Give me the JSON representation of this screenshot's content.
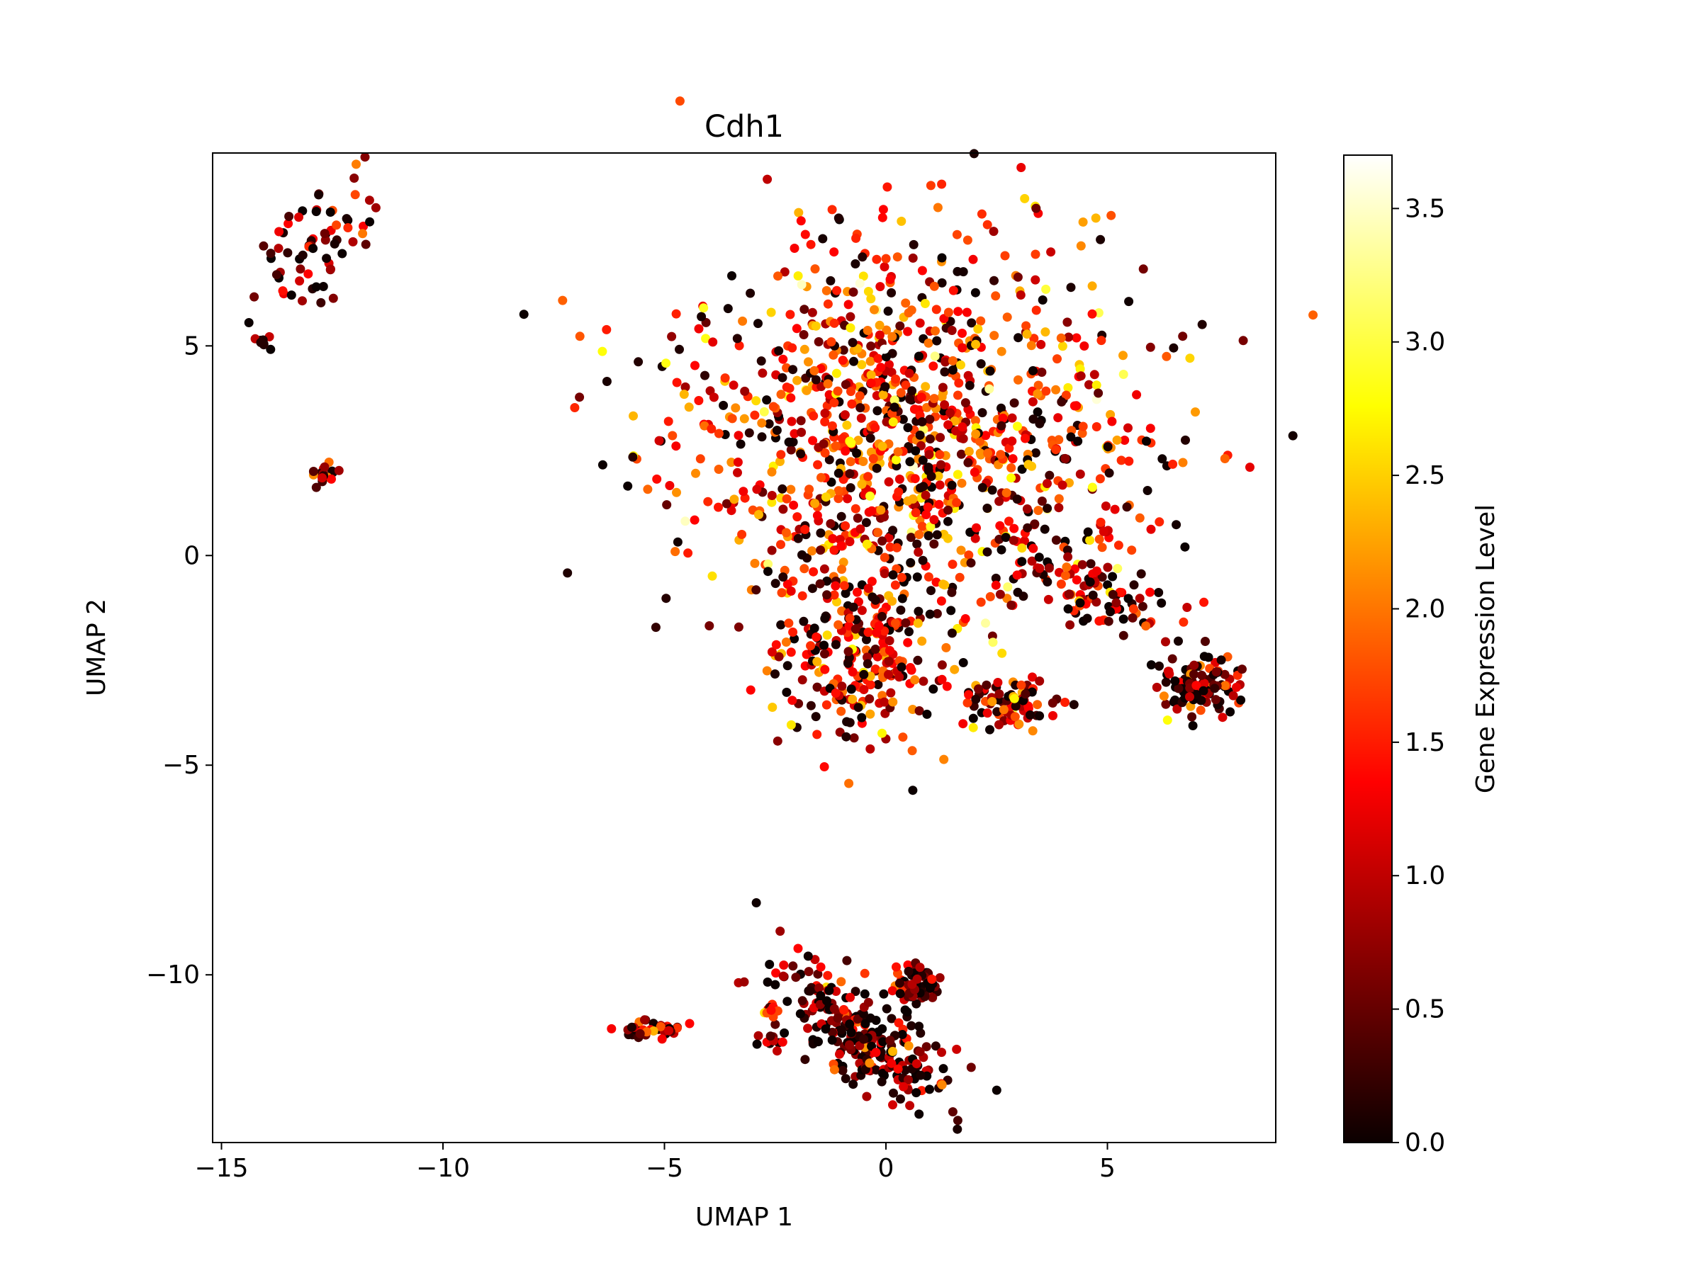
{
  "chart_data": {
    "type": "scatter",
    "title": "Cdh1",
    "xlabel": "UMAP 1",
    "ylabel": "UMAP 2",
    "xlim": [
      -15.2,
      8.8
    ],
    "ylim": [
      -14.0,
      9.6
    ],
    "xticks": [
      -15,
      -10,
      -5,
      0,
      5
    ],
    "xtick_labels": [
      "−15",
      "−10",
      "−5",
      "0",
      "5"
    ],
    "yticks": [
      -10,
      -5,
      0,
      5
    ],
    "ytick_labels": [
      "−10",
      "−5",
      "0",
      "5"
    ],
    "grid": false,
    "colormap": "hot",
    "colorbar": {
      "label": "Gene Expression Level",
      "min": 0.0,
      "max": 3.7,
      "ticks": [
        0.0,
        0.5,
        1.0,
        1.5,
        2.0,
        2.5,
        3.0,
        3.5
      ],
      "tick_labels": [
        "0.0",
        "0.5",
        "1.0",
        "1.5",
        "2.0",
        "2.5",
        "3.0",
        "3.5"
      ]
    },
    "clusters": [
      {
        "x": -12.9,
        "y": 7.4,
        "spread_x": 0.5,
        "spread_y": 0.9,
        "angle": -35,
        "count": 70,
        "mean_expression": 0.6
      },
      {
        "x": -14.1,
        "y": 5.1,
        "spread_x": 0.12,
        "spread_y": 0.08,
        "angle": 0,
        "count": 8,
        "mean_expression": 0.4
      },
      {
        "x": -12.7,
        "y": 1.95,
        "spread_x": 0.18,
        "spread_y": 0.15,
        "angle": 0,
        "count": 18,
        "mean_expression": 1.0
      },
      {
        "x": 0.5,
        "y": 3.0,
        "spread_x": 2.6,
        "spread_y": 2.2,
        "angle": 0,
        "count": 1100,
        "mean_expression": 1.5
      },
      {
        "x": -0.5,
        "y": -2.2,
        "spread_x": 1.0,
        "spread_y": 1.1,
        "angle": 0,
        "count": 260,
        "mean_expression": 1.3
      },
      {
        "x": 2.8,
        "y": -3.5,
        "spread_x": 0.6,
        "spread_y": 0.3,
        "angle": 0,
        "count": 80,
        "mean_expression": 1.0
      },
      {
        "x": 4.8,
        "y": -0.8,
        "spread_x": 1.2,
        "spread_y": 0.5,
        "angle": -25,
        "count": 110,
        "mean_expression": 1.1
      },
      {
        "x": 7.1,
        "y": -3.1,
        "spread_x": 0.5,
        "spread_y": 0.35,
        "angle": 0,
        "count": 110,
        "mean_expression": 0.4
      },
      {
        "x": -0.6,
        "y": -11.4,
        "spread_x": 1.3,
        "spread_y": 0.45,
        "angle": -40,
        "count": 260,
        "mean_expression": 0.5
      },
      {
        "x": 0.7,
        "y": -10.2,
        "spread_x": 0.3,
        "spread_y": 0.25,
        "angle": 0,
        "count": 60,
        "mean_expression": 0.4
      },
      {
        "x": -5.3,
        "y": -11.3,
        "spread_x": 0.35,
        "spread_y": 0.1,
        "angle": 0,
        "count": 40,
        "mean_expression": 0.6
      },
      {
        "x": -2.6,
        "y": -10.8,
        "spread_x": 0.08,
        "spread_y": 0.08,
        "angle": 0,
        "count": 8,
        "mean_expression": 1.2
      },
      {
        "x": -2.5,
        "y": -11.6,
        "spread_x": 0.25,
        "spread_y": 0.1,
        "angle": 0,
        "count": 12,
        "mean_expression": 0.8
      }
    ]
  }
}
